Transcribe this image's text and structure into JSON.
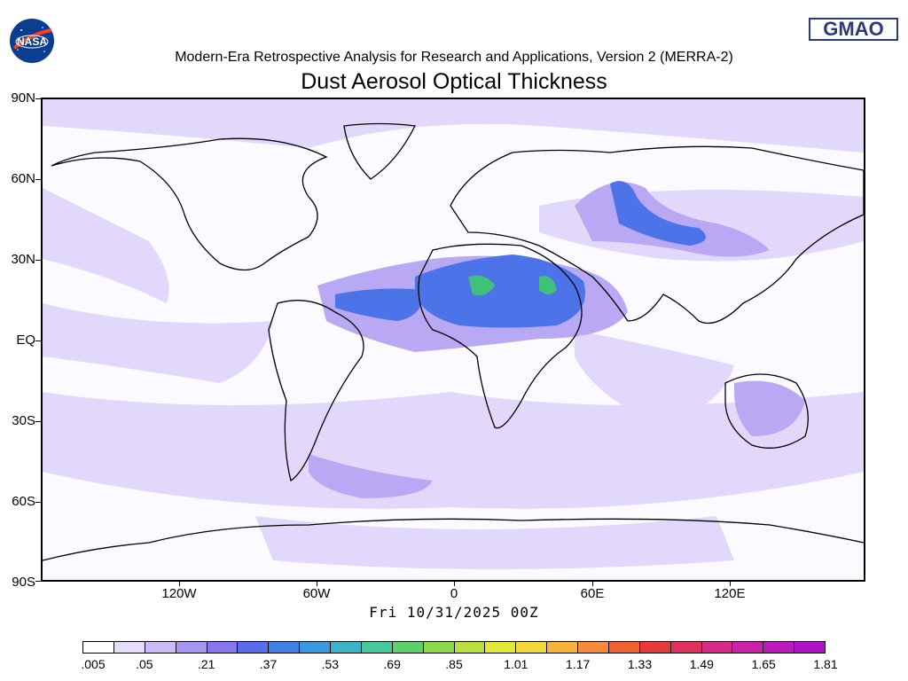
{
  "header": {
    "subtitle": "Modern-Era Retrospective Analysis for Research and Applications, Version 2 (MERRA-2)",
    "title": "Dust Aerosol Optical Thickness",
    "nasa_logo_text": "NASA",
    "gmao_logo_text": "GMAO"
  },
  "map": {
    "lat_labels": [
      "90N",
      "60N",
      "30N",
      "EQ",
      "30S",
      "60S",
      "90S"
    ],
    "lon_labels": [
      "120W",
      "60W",
      "0",
      "60E",
      "120E"
    ],
    "timestamp": "Fri 10/31/2025 00Z",
    "colors": {
      "background": "#fafaff",
      "low": "#e2d8fb",
      "mid_low": "#b9a8f4",
      "mid": "#8c7ef0",
      "high": "#4d73e8",
      "peak": "#40c078",
      "coast": "#000000"
    }
  },
  "colorbar": {
    "labels": [
      ".005",
      ".05",
      ".21",
      ".37",
      ".53",
      ".69",
      ".85",
      "1.01",
      "1.17",
      "1.33",
      "1.49",
      "1.65",
      "1.81"
    ],
    "colors": [
      "#ffffff",
      "#e6dcfb",
      "#cbbcf7",
      "#a996f3",
      "#8676f0",
      "#5a6cec",
      "#3f7fe6",
      "#3a98e0",
      "#3cb4c8",
      "#45c89a",
      "#5ed06a",
      "#8cd84a",
      "#b9e03c",
      "#e2e83a",
      "#f5d93a",
      "#f8b33a",
      "#f88a3a",
      "#f26030",
      "#e83a3a",
      "#e03060",
      "#d82a88",
      "#cc20a8",
      "#c018c0",
      "#b010c8"
    ]
  }
}
